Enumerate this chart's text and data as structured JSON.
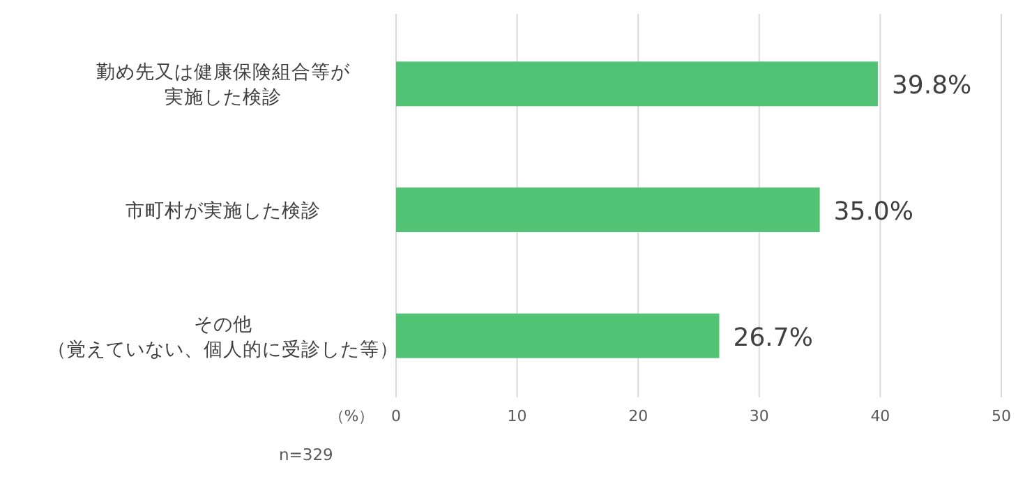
{
  "chart_data": {
    "type": "bar",
    "orientation": "horizontal",
    "categories": [
      "勤め先又は健康保険組合等が実施した検診",
      "市町村が実施した検診",
      "その他（覚えていない、個人的に受診した等）"
    ],
    "values": [
      39.8,
      35.0,
      26.7
    ],
    "value_labels": [
      "39.8%",
      "35.0%",
      "26.7%"
    ],
    "color": "#52c274",
    "xlim": [
      0,
      50
    ],
    "xticks": [
      0,
      10,
      20,
      30,
      40,
      50
    ],
    "xlabel": "（%）",
    "grid": "x",
    "annotations": [
      "n=329"
    ]
  }
}
